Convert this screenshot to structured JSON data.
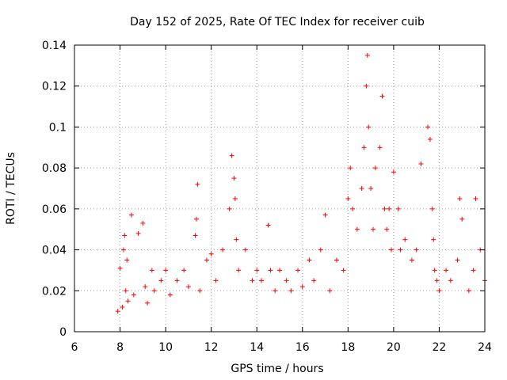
{
  "chart_data": {
    "type": "scatter",
    "title": "Day 152 of 2025, Rate Of TEC Index for receiver cuib",
    "xlabel": "GPS time / hours",
    "ylabel": "ROTI / TECUs",
    "xlim": [
      6,
      24
    ],
    "ylim": [
      0,
      0.14
    ],
    "xticks": [
      "6",
      "8",
      "10",
      "12",
      "14",
      "16",
      "18",
      "20",
      "22",
      "24"
    ],
    "yticks": [
      "0",
      "0.02",
      "0.04",
      "0.06",
      "0.08",
      "0.1",
      "0.12",
      "0.14"
    ],
    "grid": true,
    "marker": "+",
    "color": "#ff0000",
    "series": [
      {
        "name": "ROTI",
        "x": [
          7.9,
          8.0,
          8.1,
          8.15,
          8.2,
          8.25,
          8.3,
          8.35,
          8.5,
          8.6,
          8.8,
          9.0,
          9.1,
          9.2,
          9.4,
          9.5,
          9.8,
          10.0,
          10.2,
          10.5,
          10.8,
          11.0,
          11.3,
          11.35,
          11.4,
          11.5,
          11.8,
          12.0,
          12.2,
          12.5,
          12.8,
          12.9,
          13.0,
          13.05,
          13.1,
          13.2,
          13.5,
          13.8,
          14.0,
          14.2,
          14.5,
          14.6,
          14.8,
          15.0,
          15.3,
          15.5,
          15.8,
          16.0,
          16.3,
          16.5,
          16.8,
          17.0,
          17.2,
          17.5,
          17.8,
          18.0,
          18.1,
          18.2,
          18.4,
          18.6,
          18.7,
          18.8,
          18.85,
          18.9,
          19.0,
          19.1,
          19.2,
          19.4,
          19.5,
          19.6,
          19.7,
          19.8,
          19.9,
          20.0,
          20.2,
          20.3,
          20.5,
          20.8,
          21.0,
          21.2,
          21.5,
          21.6,
          21.7,
          21.75,
          21.8,
          21.9,
          22.0,
          22.3,
          22.5,
          22.8,
          22.9,
          23.0,
          23.3,
          23.5,
          23.6,
          23.8,
          24.0
        ],
        "y": [
          0.01,
          0.031,
          0.012,
          0.04,
          0.047,
          0.02,
          0.035,
          0.015,
          0.057,
          0.018,
          0.048,
          0.053,
          0.022,
          0.014,
          0.03,
          0.02,
          0.025,
          0.03,
          0.018,
          0.025,
          0.03,
          0.022,
          0.047,
          0.055,
          0.072,
          0.02,
          0.035,
          0.038,
          0.025,
          0.04,
          0.06,
          0.086,
          0.075,
          0.065,
          0.045,
          0.03,
          0.04,
          0.025,
          0.03,
          0.025,
          0.052,
          0.03,
          0.02,
          0.03,
          0.025,
          0.02,
          0.03,
          0.022,
          0.035,
          0.025,
          0.04,
          0.057,
          0.02,
          0.035,
          0.03,
          0.065,
          0.08,
          0.06,
          0.05,
          0.07,
          0.09,
          0.12,
          0.135,
          0.1,
          0.07,
          0.05,
          0.08,
          0.09,
          0.115,
          0.06,
          0.05,
          0.06,
          0.04,
          0.078,
          0.06,
          0.04,
          0.045,
          0.035,
          0.04,
          0.082,
          0.1,
          0.094,
          0.06,
          0.045,
          0.03,
          0.025,
          0.02,
          0.03,
          0.025,
          0.035,
          0.065,
          0.055,
          0.02,
          0.03,
          0.065,
          0.04,
          0.025
        ]
      }
    ]
  }
}
